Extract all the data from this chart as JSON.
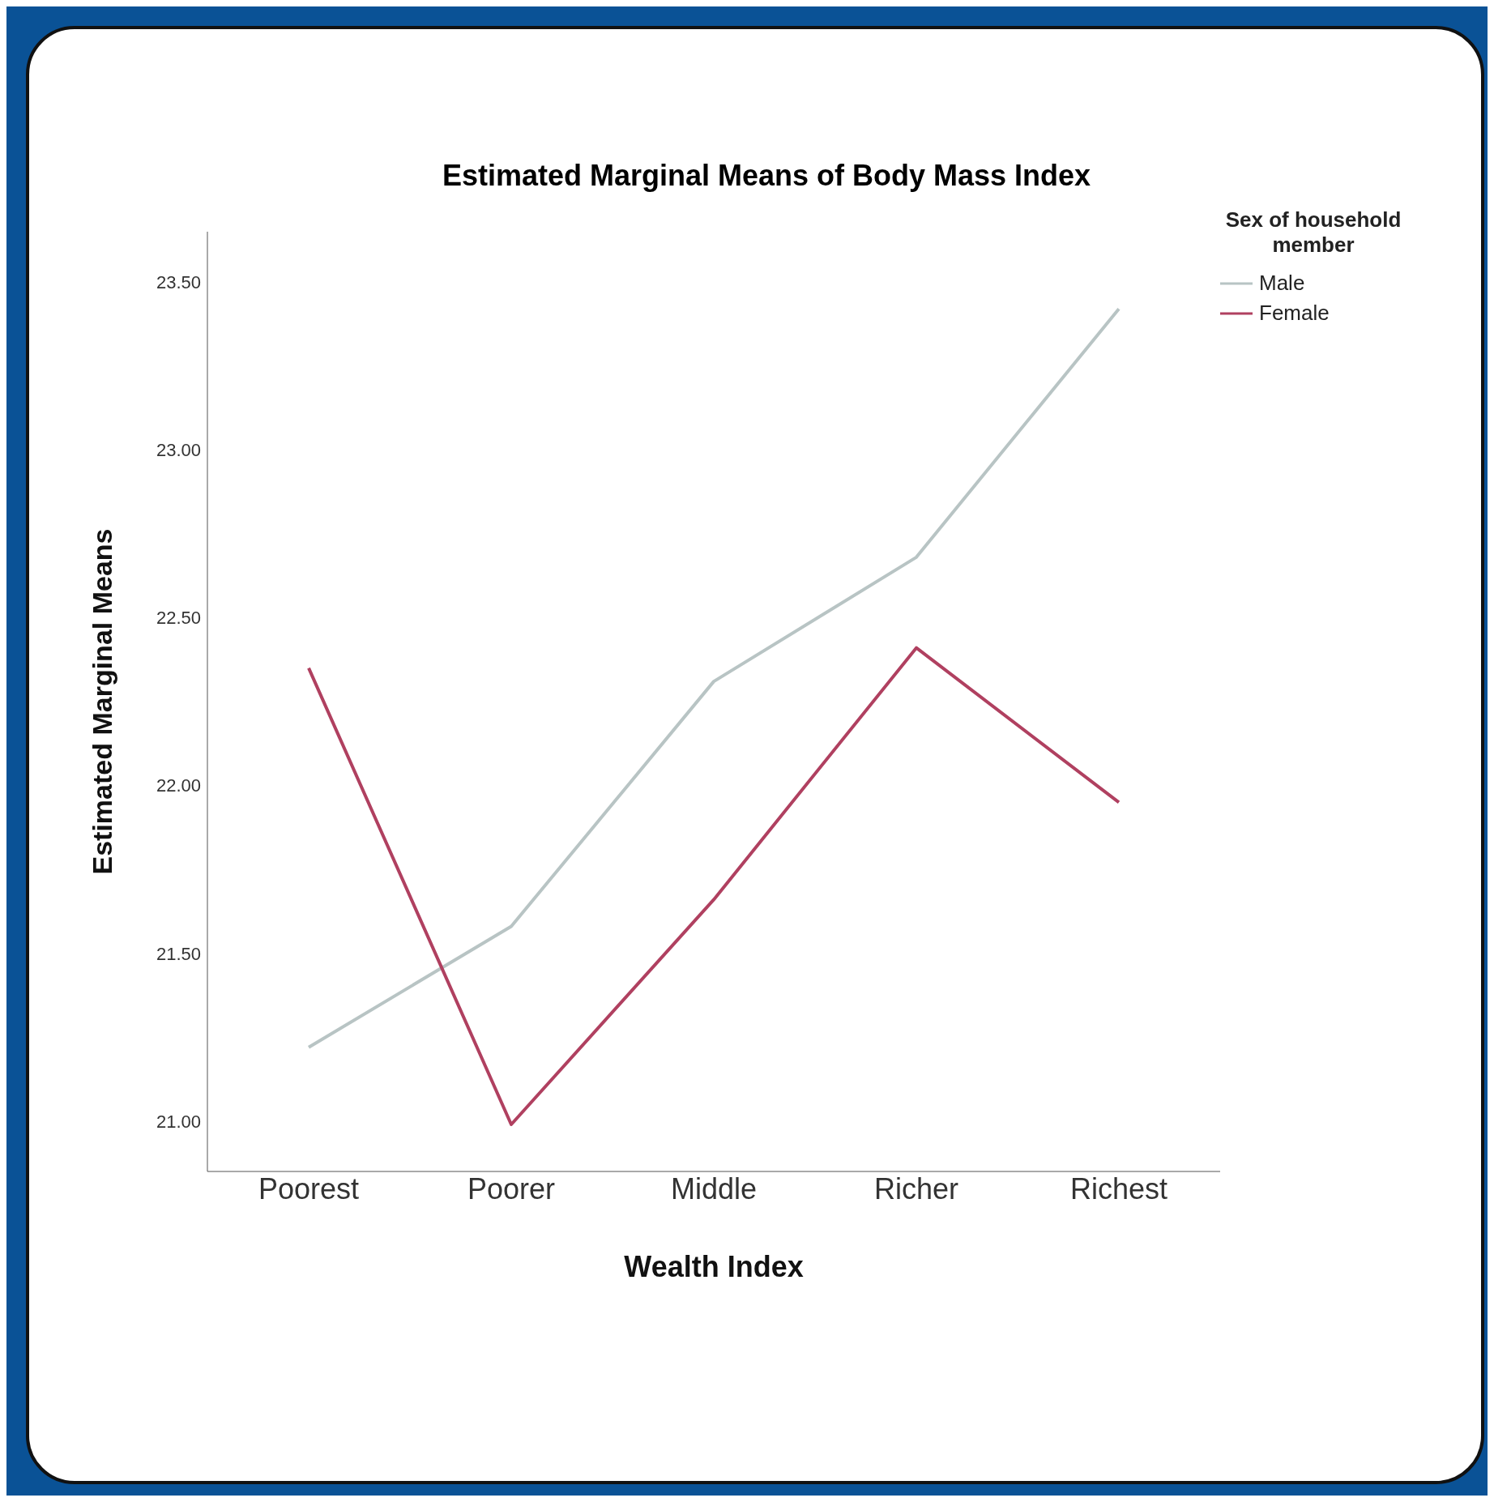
{
  "chart_data": {
    "type": "line",
    "title": "Estimated Marginal Means of Body Mass Index",
    "xlabel": "Wealth Index",
    "ylabel": "Estimated Marginal Means",
    "legend_title": "Sex of household member",
    "categories": [
      "Poorest",
      "Poorer",
      "Middle",
      "Richer",
      "Richest"
    ],
    "series": [
      {
        "name": "Male",
        "color": "#b8c4c4",
        "values": [
          21.22,
          21.58,
          22.31,
          22.68,
          23.42
        ]
      },
      {
        "name": "Female",
        "color": "#b04060",
        "values": [
          22.35,
          20.99,
          21.66,
          22.41,
          21.95
        ]
      }
    ],
    "ylim": [
      20.85,
      23.65
    ],
    "yticks": [
      {
        "value": 21,
        "label": "21.00"
      },
      {
        "value": 21.5,
        "label": "21.50"
      },
      {
        "value": 22,
        "label": "22.00"
      },
      {
        "value": 22.5,
        "label": "22.50"
      },
      {
        "value": 23,
        "label": "23.00"
      },
      {
        "value": 23.5,
        "label": "23.50"
      }
    ],
    "grid": false,
    "legend": "top right",
    "marker": "none",
    "line_style": "solid"
  }
}
